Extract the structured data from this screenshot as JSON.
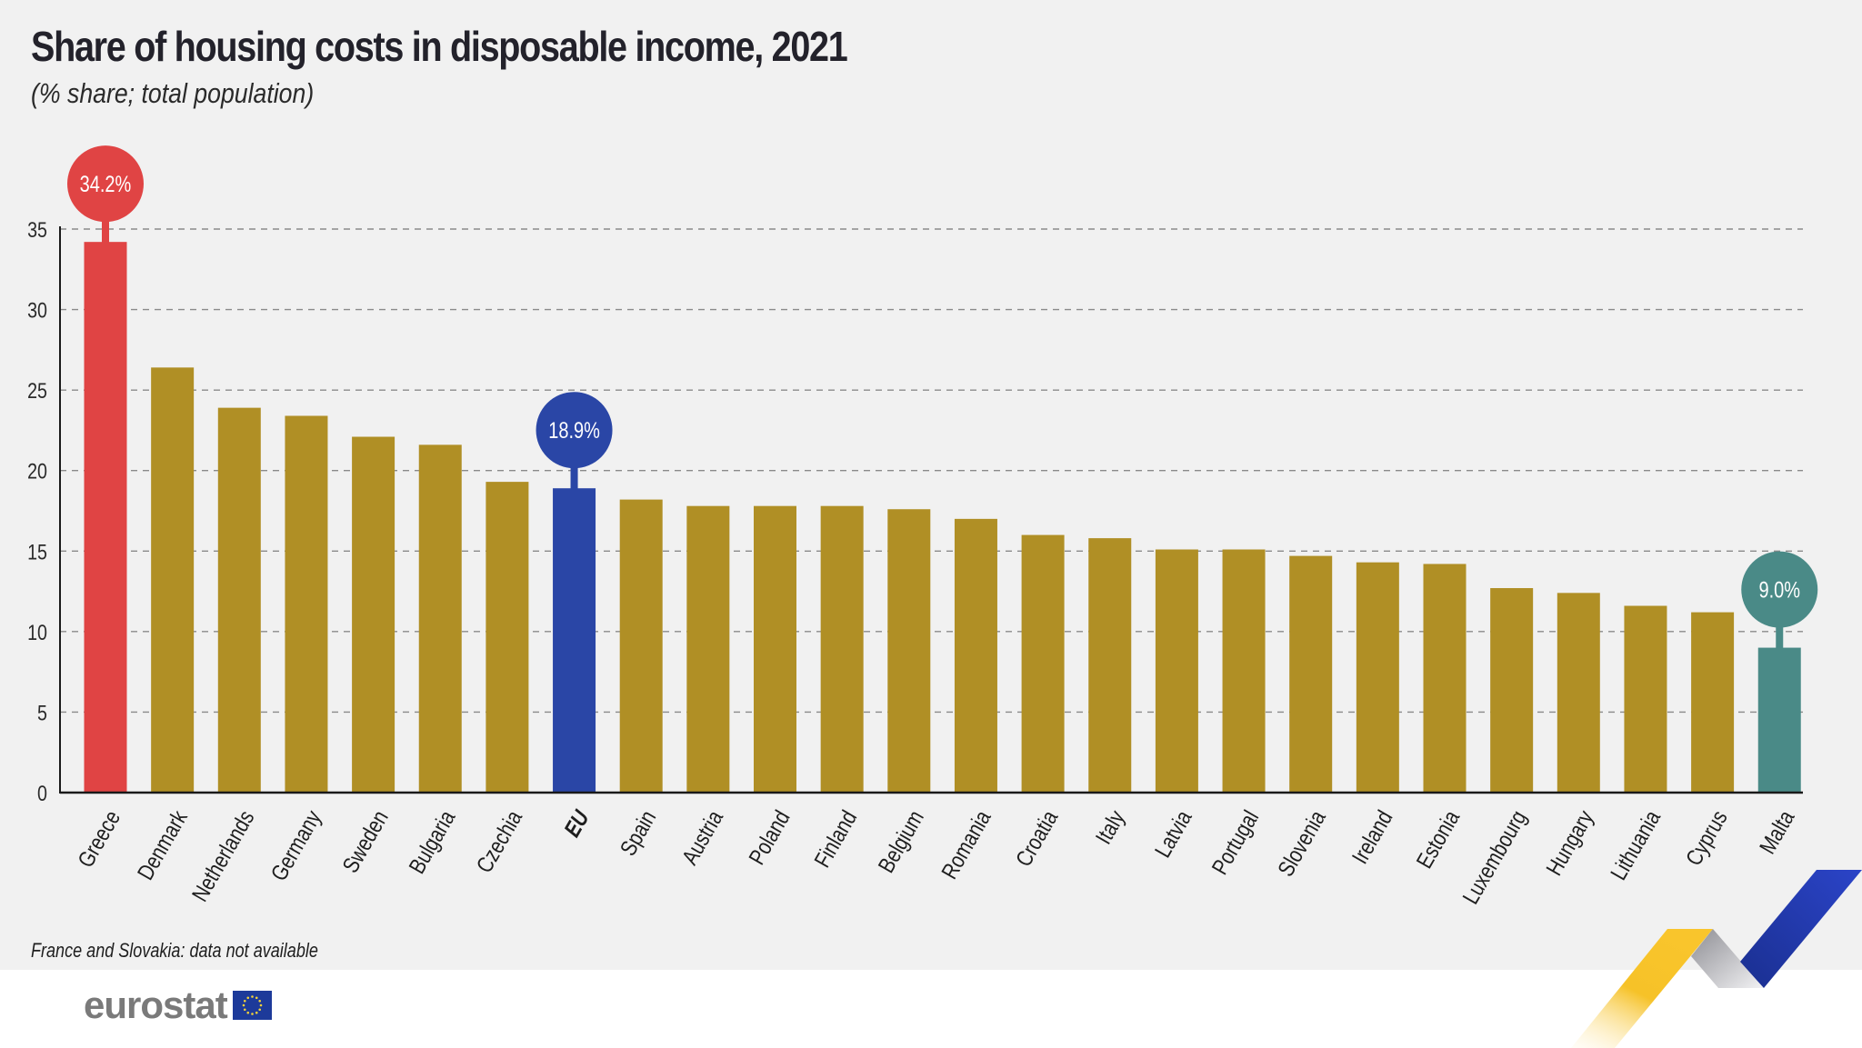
{
  "header": {
    "title": "Share of housing costs in disposable income, 2021",
    "subtitle": "(% share; total population)"
  },
  "footer": {
    "note": "France and Slovakia: data not available",
    "logo_text": "eurostat",
    "logo_icon": "eu-flag-icon"
  },
  "colors": {
    "default_bar": "#b08f25",
    "max_bar": "#e04444",
    "eu_bar": "#2a46a6",
    "min_bar": "#4a8a87",
    "grid": "#8a8a8a",
    "axis": "#1a1a1a",
    "background": "#f1f1f1"
  },
  "chart_data": {
    "type": "bar",
    "title": "Share of housing costs in disposable income, 2021",
    "subtitle": "(% share; total population)",
    "xlabel": "",
    "ylabel": "",
    "ylim": [
      0,
      35
    ],
    "yticks": [
      0,
      5,
      10,
      15,
      20,
      25,
      30,
      35
    ],
    "grid": true,
    "categories": [
      "Greece",
      "Denmark",
      "Netherlands",
      "Germany",
      "Sweden",
      "Bulgaria",
      "Czechia",
      "EU",
      "Spain",
      "Austria",
      "Poland",
      "Finland",
      "Belgium",
      "Romania",
      "Croatia",
      "Italy",
      "Latvia",
      "Portugal",
      "Slovenia",
      "Ireland",
      "Estonia",
      "Luxembourg",
      "Hungary",
      "Lithuania",
      "Cyprus",
      "Malta"
    ],
    "values": [
      34.2,
      26.4,
      23.9,
      23.4,
      22.1,
      21.6,
      19.3,
      18.9,
      18.2,
      17.8,
      17.8,
      17.8,
      17.6,
      17.0,
      16.0,
      15.8,
      15.1,
      15.1,
      14.7,
      14.3,
      14.2,
      12.7,
      12.4,
      11.6,
      11.2,
      9.0
    ],
    "highlights": [
      {
        "category": "Greece",
        "label": "34.2%",
        "role": "max"
      },
      {
        "category": "EU",
        "label": "18.9%",
        "role": "eu"
      },
      {
        "category": "Malta",
        "label": "9.0%",
        "role": "min"
      }
    ],
    "bold_categories": [
      "EU"
    ],
    "footnote": "France and Slovakia: data not available"
  }
}
